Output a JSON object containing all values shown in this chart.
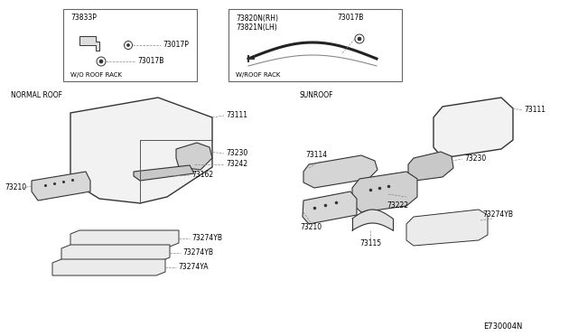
{
  "bg_color": "#ffffff",
  "lc": "#555555",
  "tc": "#000000",
  "fig_width": 6.4,
  "fig_height": 3.72,
  "dpi": 100,
  "diagram_ref": "E730004N",
  "box1_label": "W/O ROOF RACK",
  "box2_label": "W/ROOF RACK",
  "sec1_label": "NORMAL ROOF",
  "sec2_label": "SUNROOF",
  "fs": 5.5
}
